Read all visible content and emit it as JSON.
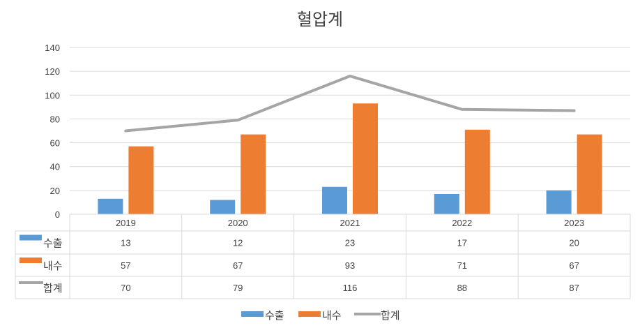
{
  "chart_data": {
    "type": "bar",
    "title": "혈압계",
    "categories": [
      "2019",
      "2020",
      "2021",
      "2022",
      "2023"
    ],
    "series": [
      {
        "name": "수출",
        "kind": "bar",
        "color": "#5B9BD5",
        "values": [
          13,
          12,
          23,
          17,
          20
        ]
      },
      {
        "name": "내수",
        "kind": "bar",
        "color": "#ED7D31",
        "values": [
          57,
          67,
          93,
          71,
          67
        ]
      },
      {
        "name": "합계",
        "kind": "line",
        "color": "#A5A5A5",
        "values": [
          70,
          79,
          116,
          88,
          87
        ]
      }
    ],
    "ylim": [
      0,
      140
    ],
    "yticks": [
      0,
      20,
      40,
      60,
      80,
      100,
      120,
      140
    ],
    "grid": true,
    "data_table": true,
    "legend": "bottom"
  }
}
